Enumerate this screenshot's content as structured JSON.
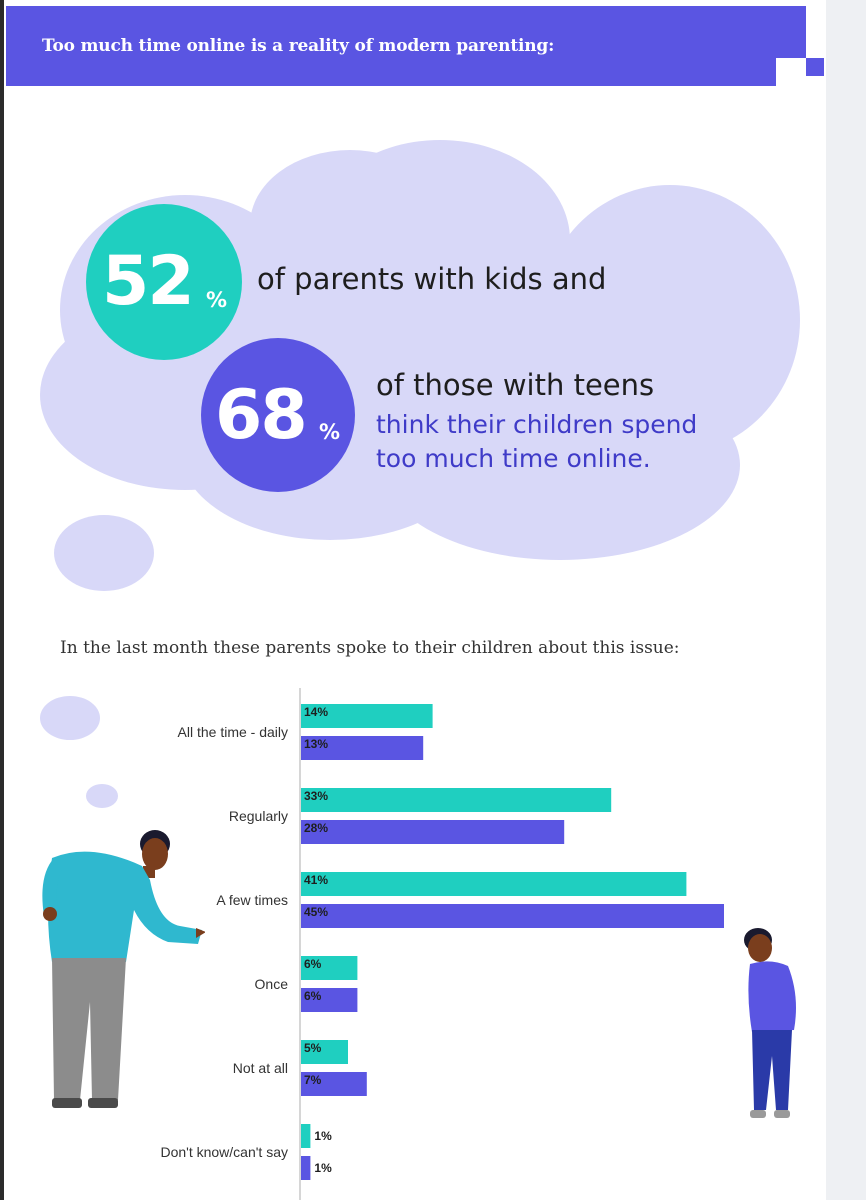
{
  "header": {
    "title": "Too much time online is a reality of modern parenting:"
  },
  "stats": {
    "first": {
      "value": "52",
      "unit": "%",
      "text": "of parents with kids and"
    },
    "second": {
      "value": "68",
      "unit": "%",
      "text": "of those with teens",
      "continuation_1": "think their children spend",
      "continuation_2": "too much time online."
    }
  },
  "colors": {
    "accent_purple": "#5a55e2",
    "accent_teal": "#1fcfc0",
    "cloud": "#d8d8f8",
    "text_accent": "#3f3bc8"
  },
  "chart_data": {
    "type": "bar",
    "orientation": "horizontal",
    "title": "In the last month these parents spoke to their children about this issue:",
    "categories": [
      "All the time - daily",
      "Regularly",
      "A few times",
      "Once",
      "Not at all",
      "Don't know/can't say"
    ],
    "series": [
      {
        "color": "#1fcfc0",
        "values": [
          14,
          33,
          41,
          6,
          5,
          1
        ]
      },
      {
        "color": "#5a55e2",
        "values": [
          13,
          28,
          45,
          6,
          7,
          1
        ]
      }
    ],
    "value_labels": [
      [
        "14%",
        "33%",
        "41%",
        "6%",
        "5%",
        "1%"
      ],
      [
        "13%",
        "28%",
        "45%",
        "6%",
        "7%",
        "1%"
      ]
    ],
    "xlim": [
      0,
      45
    ],
    "grid": false,
    "legend": "none"
  }
}
